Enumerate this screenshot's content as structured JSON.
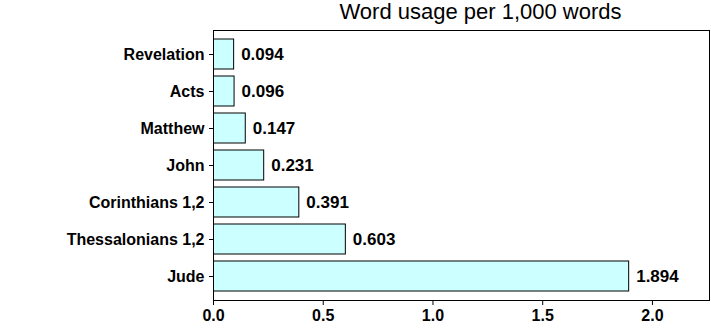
{
  "chart_data": {
    "type": "bar",
    "title": "Word usage per 1,000 words",
    "orientation": "horizontal",
    "categories": [
      "Revelation",
      "Acts",
      "Matthew",
      "John",
      "Corinthians 1,2",
      "Thessalonians 1,2",
      "Jude"
    ],
    "values": [
      0.094,
      0.096,
      0.147,
      0.231,
      0.391,
      0.603,
      1.894
    ],
    "color": "#ccffff",
    "xlim": [
      0,
      2.26
    ],
    "xticks": [
      {
        "value": 0,
        "label": "0.0"
      },
      0.5,
      {
        "value": 1,
        "label": "1.0"
      },
      1.5,
      {
        "value": 2,
        "label": "2.0"
      }
    ],
    "grid": false,
    "data_labels": true
  }
}
